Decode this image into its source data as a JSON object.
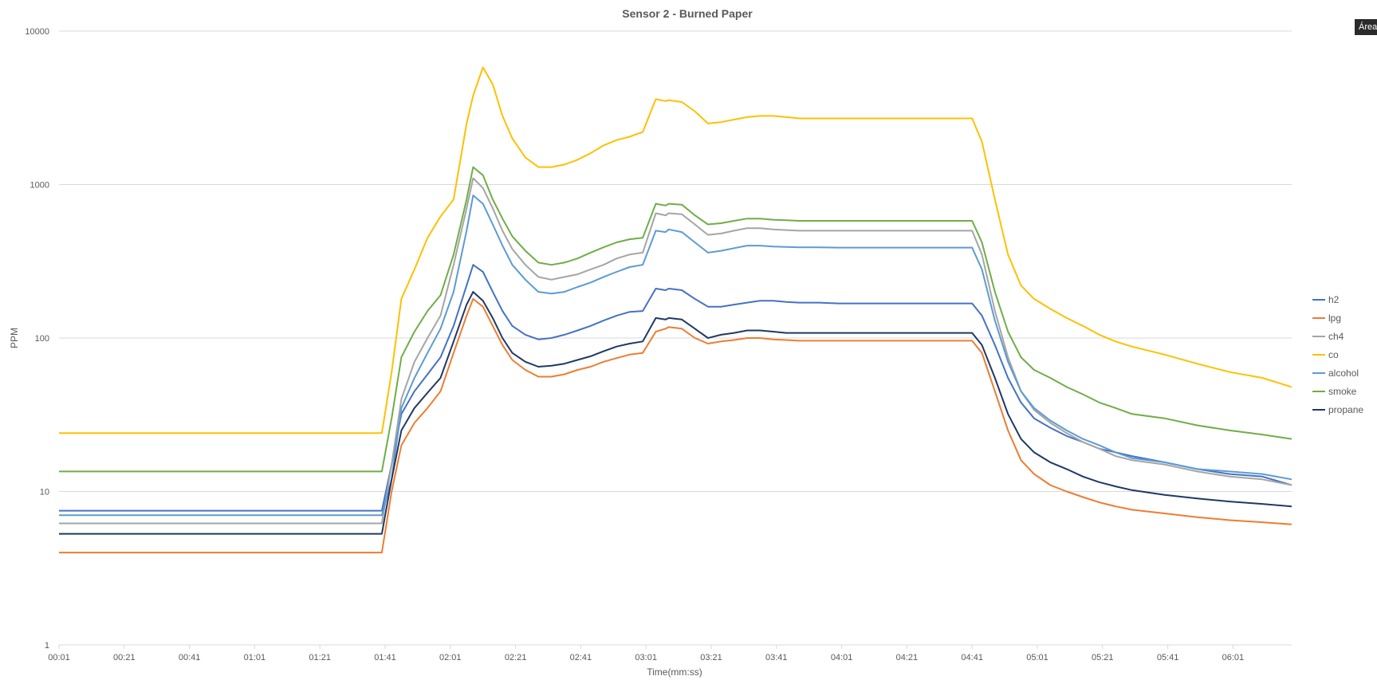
{
  "tooltip": "Área",
  "chart_data": {
    "type": "line",
    "title": "Sensor 2 - Burned Paper",
    "xlabel": "Time(mm:ss)",
    "ylabel": "PPM",
    "yscale": "log",
    "ylim": [
      1,
      10000
    ],
    "yticks": [
      "1",
      "10",
      "100",
      "1000",
      "10000"
    ],
    "xlim_seconds": [
      1,
      379
    ],
    "xticks": [
      "00:01",
      "00:21",
      "00:41",
      "01:01",
      "01:21",
      "01:41",
      "02:01",
      "02:21",
      "02:41",
      "03:01",
      "03:21",
      "03:41",
      "04:01",
      "04:21",
      "04:41",
      "05:01",
      "05:21",
      "05:41",
      "06:01"
    ],
    "grid": "horizontal",
    "legend_position": "right",
    "x": [
      "00:01",
      "01:40",
      "01:43",
      "01:46",
      "01:50",
      "01:54",
      "01:58",
      "02:02",
      "02:06",
      "02:08",
      "02:11",
      "02:14",
      "02:17",
      "02:20",
      "02:24",
      "02:28",
      "02:32",
      "02:36",
      "02:40",
      "02:44",
      "02:48",
      "02:52",
      "02:56",
      "03:00",
      "03:04",
      "03:07",
      "03:08",
      "03:12",
      "03:16",
      "03:20",
      "03:24",
      "03:28",
      "03:32",
      "03:36",
      "03:40",
      "03:44",
      "03:48",
      "03:54",
      "04:00",
      "04:10",
      "04:20",
      "04:30",
      "04:41",
      "04:44",
      "04:48",
      "04:52",
      "04:56",
      "05:00",
      "05:05",
      "05:10",
      "05:15",
      "05:20",
      "05:25",
      "05:30",
      "05:40",
      "05:50",
      "06:00",
      "06:10",
      "06:19"
    ],
    "series": [
      {
        "name": "h2",
        "color": "#4472c4",
        "values": [
          7.5,
          7.5,
          15,
          32,
          45,
          58,
          75,
          120,
          220,
          300,
          270,
          200,
          150,
          120,
          105,
          98,
          100,
          105,
          112,
          120,
          130,
          140,
          148,
          150,
          210,
          205,
          210,
          205,
          180,
          160,
          160,
          165,
          170,
          175,
          175,
          172,
          170,
          170,
          168,
          168,
          168,
          168,
          168,
          140,
          90,
          55,
          38,
          30,
          26,
          23,
          21,
          19,
          18,
          17,
          15.5,
          14,
          13,
          12.5,
          11
        ]
      },
      {
        "name": "lpg",
        "color": "#ed7d31",
        "values": [
          4,
          4,
          10,
          20,
          28,
          35,
          45,
          80,
          140,
          180,
          160,
          120,
          90,
          72,
          62,
          56,
          56,
          58,
          62,
          65,
          70,
          74,
          78,
          80,
          110,
          115,
          118,
          115,
          100,
          92,
          95,
          97,
          100,
          100,
          98,
          97,
          96,
          96,
          96,
          96,
          96,
          96,
          96,
          80,
          45,
          25,
          16,
          13,
          11,
          10,
          9.2,
          8.5,
          8,
          7.6,
          7.2,
          6.8,
          6.5,
          6.3,
          6.1
        ]
      },
      {
        "name": "ch4",
        "color": "#a5a5a5",
        "values": [
          6.2,
          6.2,
          15,
          40,
          70,
          100,
          140,
          300,
          700,
          1100,
          950,
          700,
          500,
          380,
          300,
          250,
          240,
          250,
          260,
          280,
          300,
          330,
          350,
          360,
          650,
          630,
          650,
          640,
          550,
          470,
          480,
          500,
          520,
          520,
          510,
          505,
          500,
          500,
          500,
          500,
          500,
          500,
          500,
          350,
          150,
          75,
          45,
          34,
          28,
          24,
          21,
          19,
          17,
          16,
          15,
          13.5,
          12.5,
          12,
          11
        ]
      },
      {
        "name": "co",
        "color": "#ffc000",
        "values": [
          24,
          24,
          60,
          180,
          280,
          450,
          620,
          800,
          2500,
          3800,
          5800,
          4500,
          2800,
          2000,
          1500,
          1300,
          1300,
          1350,
          1450,
          1600,
          1800,
          1950,
          2050,
          2200,
          3600,
          3500,
          3550,
          3450,
          3000,
          2500,
          2550,
          2650,
          2750,
          2800,
          2800,
          2750,
          2700,
          2700,
          2700,
          2700,
          2700,
          2700,
          2700,
          1900,
          800,
          350,
          220,
          180,
          155,
          135,
          120,
          105,
          95,
          88,
          78,
          68,
          60,
          55,
          48
        ]
      },
      {
        "name": "alcohol",
        "color": "#5b9bd5",
        "values": [
          7,
          7,
          12,
          35,
          55,
          80,
          115,
          200,
          500,
          850,
          750,
          550,
          400,
          300,
          240,
          200,
          195,
          200,
          215,
          230,
          250,
          270,
          290,
          300,
          500,
          490,
          510,
          490,
          420,
          360,
          370,
          385,
          400,
          400,
          395,
          392,
          390,
          390,
          388,
          388,
          388,
          388,
          388,
          280,
          130,
          70,
          45,
          35,
          29,
          25,
          22,
          20,
          18,
          16.5,
          15.5,
          14,
          13.5,
          13,
          12
        ]
      },
      {
        "name": "smoke",
        "color": "#70ad47",
        "values": [
          13.5,
          13.5,
          30,
          75,
          110,
          150,
          190,
          350,
          800,
          1300,
          1150,
          800,
          600,
          460,
          370,
          310,
          300,
          310,
          330,
          360,
          390,
          420,
          440,
          450,
          750,
          730,
          750,
          740,
          630,
          550,
          560,
          580,
          600,
          600,
          590,
          585,
          580,
          580,
          580,
          580,
          580,
          580,
          580,
          420,
          200,
          110,
          75,
          62,
          55,
          48,
          43,
          38,
          35,
          32,
          30,
          27,
          25,
          23.5,
          22
        ]
      },
      {
        "name": "propane",
        "color": "#203864",
        "values": [
          5.3,
          5.3,
          12,
          25,
          35,
          44,
          55,
          95,
          165,
          200,
          175,
          135,
          100,
          80,
          70,
          65,
          66,
          68,
          72,
          76,
          82,
          88,
          92,
          95,
          135,
          132,
          135,
          132,
          115,
          100,
          105,
          108,
          112,
          112,
          110,
          108,
          108,
          108,
          108,
          108,
          108,
          108,
          108,
          90,
          55,
          32,
          22,
          18,
          15.5,
          14,
          12.5,
          11.5,
          10.8,
          10.2,
          9.5,
          9,
          8.6,
          8.3,
          8
        ]
      }
    ]
  }
}
